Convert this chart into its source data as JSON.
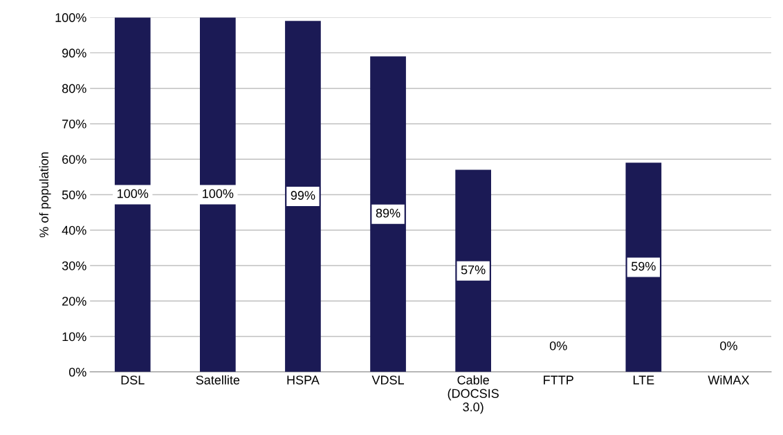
{
  "chart_data": {
    "type": "bar",
    "ylabel": "% of population",
    "categories": [
      "DSL",
      "Satellite",
      "HSPA",
      "VDSL",
      "Cable\n(DOCSIS\n3.0)",
      "FTTP",
      "LTE",
      "WiMAX"
    ],
    "values": [
      100,
      100,
      99,
      89,
      57,
      0,
      59,
      0
    ],
    "value_labels": [
      "100%",
      "100%",
      "99%",
      "89%",
      "57%",
      "0%",
      "59%",
      "0%"
    ],
    "color": "#1b1a55",
    "ylim": [
      0,
      100
    ],
    "yticks": [
      {
        "value": 0,
        "label": "0%"
      },
      {
        "value": 10,
        "label": "10%"
      },
      {
        "value": 20,
        "label": "20%"
      },
      {
        "value": 30,
        "label": "30%"
      },
      {
        "value": 40,
        "label": "40%"
      },
      {
        "value": 50,
        "label": "50%"
      },
      {
        "value": 60,
        "label": "60%"
      },
      {
        "value": 70,
        "label": "70%"
      },
      {
        "value": 80,
        "label": "80%"
      },
      {
        "value": 90,
        "label": "90%"
      },
      {
        "value": 100,
        "label": "100%"
      }
    ],
    "grid": "y",
    "legend": false
  }
}
